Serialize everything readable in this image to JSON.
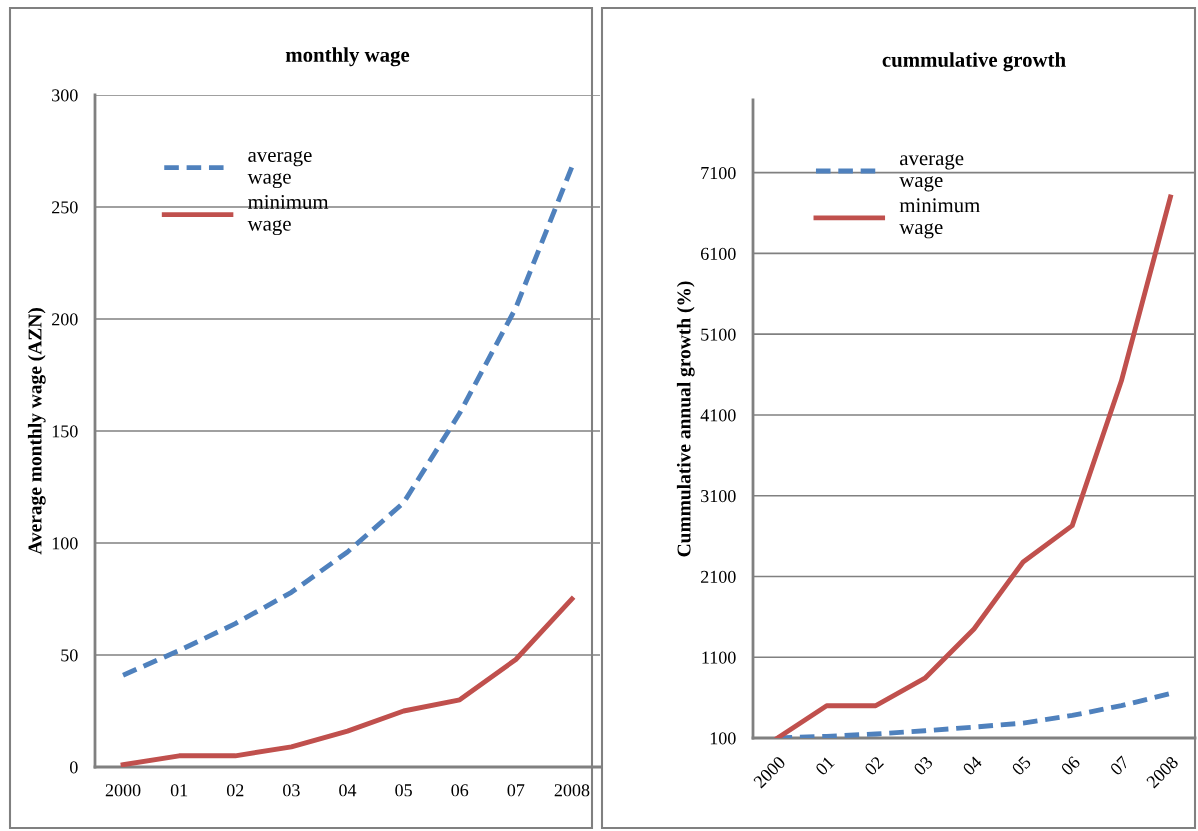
{
  "chart_data": [
    {
      "type": "line",
      "title": "monthly wage",
      "ylabel": "Average monthly wage (AZN)",
      "categories": [
        "2000",
        "01",
        "02",
        "03",
        "04",
        "05",
        "06",
        "07",
        "2008"
      ],
      "ylim": [
        0,
        300
      ],
      "yticks": [
        0,
        50,
        100,
        150,
        200,
        250,
        300
      ],
      "grid": "y",
      "legend": "top left",
      "marker": "none",
      "series": [
        {
          "name": "average wage",
          "color": "#4f81bd",
          "line_style": "dashed",
          "values": [
            41,
            52,
            64,
            78,
            96,
            118,
            158,
            205,
            268
          ]
        },
        {
          "name": "minimum wage",
          "color": "#c0504d",
          "line_style": "solid",
          "values": [
            1,
            5,
            5,
            9,
            16,
            25,
            30,
            48,
            75
          ]
        }
      ]
    },
    {
      "type": "line",
      "title": "cummulative growth",
      "ylabel": "Cummulative annual growth (%)",
      "categories": [
        "2000",
        "01",
        "02",
        "03",
        "04",
        "05",
        "06",
        "07",
        "2008"
      ],
      "ylim": [
        100,
        8000
      ],
      "yticks": [
        100,
        1100,
        2100,
        3100,
        4100,
        5100,
        6100,
        7100
      ],
      "grid": "y",
      "legend": "top left",
      "marker": "none",
      "series": [
        {
          "name": "average wage",
          "color": "#4f81bd",
          "line_style": "dashed",
          "values": [
            100,
            120,
            150,
            190,
            235,
            285,
            380,
            500,
            650
          ]
        },
        {
          "name": "minimum wage",
          "color": "#c0504d",
          "line_style": "solid",
          "values": [
            100,
            500,
            500,
            840,
            1450,
            2280,
            2730,
            4520,
            6800
          ]
        }
      ]
    }
  ]
}
